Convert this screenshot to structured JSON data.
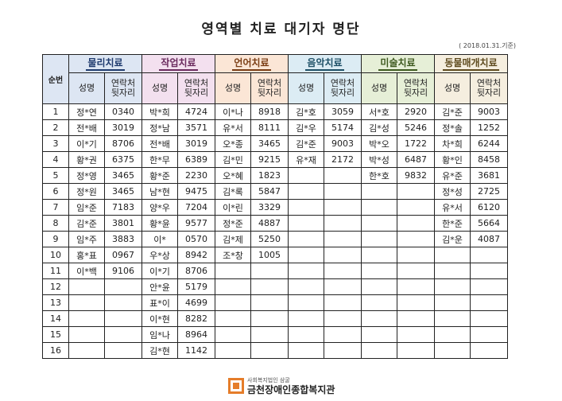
{
  "title": "영역별 치료 대기자 명단",
  "date": "( 2018.01.31.기준)",
  "index_header": "순번",
  "sub_headers": {
    "name": "성명",
    "contact": "연락처\n뒷자리"
  },
  "categories": [
    "물리치료",
    "작업치료",
    "언어치료",
    "음악치료",
    "미술치료",
    "동물매개치료"
  ],
  "rows": [
    [
      "1",
      "정*연",
      "0340",
      "박*희",
      "4724",
      "이*나",
      "8918",
      "김*호",
      "3059",
      "서*호",
      "2920",
      "김*준",
      "9003"
    ],
    [
      "2",
      "전*배",
      "3019",
      "정*남",
      "3571",
      "유*서",
      "8111",
      "김*우",
      "5174",
      "김*성",
      "5246",
      "정*솔",
      "1252"
    ],
    [
      "3",
      "이*기",
      "8706",
      "전*배",
      "3019",
      "오*종",
      "3465",
      "김*준",
      "9003",
      "박*오",
      "1722",
      "차*희",
      "6244"
    ],
    [
      "4",
      "황*권",
      "6375",
      "한*무",
      "6389",
      "김*민",
      "9215",
      "유*재",
      "2172",
      "박*성",
      "6487",
      "황*인",
      "8458"
    ],
    [
      "5",
      "정*영",
      "3465",
      "황*준",
      "2230",
      "오*혜",
      "1823",
      "",
      "",
      "한*호",
      "9832",
      "유*준",
      "3681"
    ],
    [
      "6",
      "정*원",
      "3465",
      "남*현",
      "9475",
      "김*록",
      "5847",
      "",
      "",
      "",
      "",
      "정*성",
      "2725"
    ],
    [
      "7",
      "임*준",
      "7183",
      "양*우",
      "7204",
      "이*린",
      "3329",
      "",
      "",
      "",
      "",
      "유*서",
      "6120"
    ],
    [
      "8",
      "김*준",
      "3801",
      "황*윤",
      "9577",
      "정*준",
      "4887",
      "",
      "",
      "",
      "",
      "한*준",
      "5664"
    ],
    [
      "9",
      "임*주",
      "3883",
      "이*",
      "0570",
      "김*제",
      "5250",
      "",
      "",
      "",
      "",
      "김*운",
      "4087"
    ],
    [
      "10",
      "홍*표",
      "0967",
      "우*상",
      "8942",
      "조*창",
      "1005",
      "",
      "",
      "",
      "",
      "",
      ""
    ],
    [
      "11",
      "이*백",
      "9106",
      "이*기",
      "8706",
      "",
      "",
      "",
      "",
      "",
      "",
      "",
      ""
    ],
    [
      "12",
      "",
      "",
      "안*윤",
      "5179",
      "",
      "",
      "",
      "",
      "",
      "",
      "",
      ""
    ],
    [
      "13",
      "",
      "",
      "표*이",
      "4699",
      "",
      "",
      "",
      "",
      "",
      "",
      "",
      ""
    ],
    [
      "14",
      "",
      "",
      "이*현",
      "8282",
      "",
      "",
      "",
      "",
      "",
      "",
      "",
      ""
    ],
    [
      "15",
      "",
      "",
      "임*나",
      "8964",
      "",
      "",
      "",
      "",
      "",
      "",
      "",
      ""
    ],
    [
      "16",
      "",
      "",
      "김*현",
      "1142",
      "",
      "",
      "",
      "",
      "",
      "",
      "",
      ""
    ]
  ],
  "footer": {
    "small": "사회복지법인 삼굴",
    "name": "금천장애인종합복지관"
  },
  "colors": {
    "logo": "#e57d2a"
  }
}
